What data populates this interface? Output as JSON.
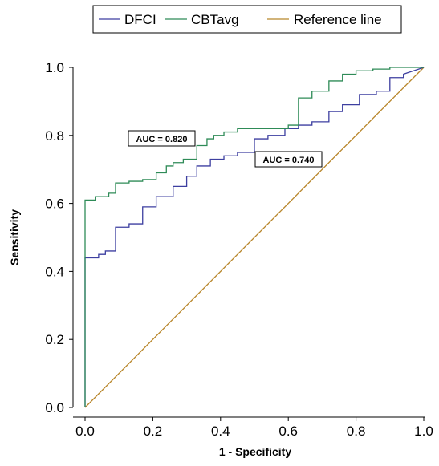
{
  "chart_data": {
    "type": "line",
    "title": "",
    "xlabel": "1 - Specificity",
    "ylabel": "Sensitivity",
    "xlim": [
      0,
      1
    ],
    "ylim": [
      0,
      1
    ],
    "xticks": [
      "0.0",
      "0.2",
      "0.4",
      "0.6",
      "0.8",
      "1.0"
    ],
    "yticks": [
      "0.0",
      "0.2",
      "0.4",
      "0.6",
      "0.8",
      "1.0"
    ],
    "grid": false,
    "legend_position": "top-center",
    "series": [
      {
        "name": "DFCI",
        "color": "#3d3fa0",
        "x": [
          0,
          0,
          0.04,
          0.04,
          0.06,
          0.06,
          0.09,
          0.09,
          0.13,
          0.13,
          0.17,
          0.17,
          0.21,
          0.21,
          0.26,
          0.26,
          0.3,
          0.3,
          0.33,
          0.33,
          0.37,
          0.37,
          0.41,
          0.41,
          0.45,
          0.45,
          0.5,
          0.5,
          0.54,
          0.54,
          0.59,
          0.59,
          0.63,
          0.63,
          0.67,
          0.67,
          0.72,
          0.72,
          0.76,
          0.76,
          0.81,
          0.81,
          0.86,
          0.86,
          0.9,
          0.9,
          0.94,
          0.94,
          1.0
        ],
        "y": [
          0,
          0.44,
          0.44,
          0.45,
          0.45,
          0.46,
          0.46,
          0.53,
          0.53,
          0.54,
          0.54,
          0.59,
          0.59,
          0.62,
          0.62,
          0.65,
          0.65,
          0.68,
          0.68,
          0.71,
          0.71,
          0.73,
          0.73,
          0.74,
          0.74,
          0.75,
          0.75,
          0.79,
          0.79,
          0.8,
          0.8,
          0.82,
          0.82,
          0.83,
          0.83,
          0.84,
          0.84,
          0.87,
          0.87,
          0.89,
          0.89,
          0.92,
          0.92,
          0.93,
          0.93,
          0.97,
          0.97,
          0.98,
          1.0
        ]
      },
      {
        "name": "CBTavg",
        "color": "#2e8b57",
        "x": [
          0,
          0,
          0.03,
          0.03,
          0.07,
          0.07,
          0.09,
          0.09,
          0.13,
          0.13,
          0.17,
          0.17,
          0.21,
          0.21,
          0.24,
          0.24,
          0.26,
          0.26,
          0.29,
          0.29,
          0.33,
          0.33,
          0.36,
          0.36,
          0.38,
          0.38,
          0.41,
          0.41,
          0.45,
          0.45,
          0.6,
          0.6,
          0.63,
          0.63,
          0.67,
          0.67,
          0.72,
          0.72,
          0.76,
          0.76,
          0.8,
          0.8,
          0.85,
          0.85,
          0.9,
          0.9,
          0.95,
          0.95,
          1.0
        ],
        "y": [
          0,
          0.61,
          0.61,
          0.62,
          0.62,
          0.63,
          0.63,
          0.66,
          0.66,
          0.665,
          0.665,
          0.67,
          0.67,
          0.69,
          0.69,
          0.71,
          0.71,
          0.72,
          0.72,
          0.73,
          0.73,
          0.77,
          0.77,
          0.79,
          0.79,
          0.8,
          0.8,
          0.81,
          0.81,
          0.82,
          0.82,
          0.83,
          0.83,
          0.91,
          0.91,
          0.93,
          0.93,
          0.96,
          0.96,
          0.98,
          0.98,
          0.99,
          0.99,
          0.995,
          0.995,
          1.0,
          1.0,
          1.0,
          1.0
        ]
      },
      {
        "name": "Reference line",
        "color": "#b8862b",
        "x": [
          0,
          1
        ],
        "y": [
          0,
          1
        ]
      }
    ],
    "annotations": [
      {
        "text": "AUC = 0.820",
        "series": "CBTavg"
      },
      {
        "text": "AUC = 0.740",
        "series": "DFCI"
      }
    ]
  }
}
